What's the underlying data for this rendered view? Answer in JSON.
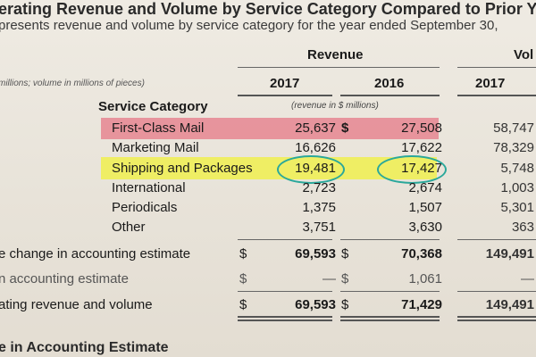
{
  "header": {
    "title": "erating Revenue and Volume by Service Category Compared to Prior Year",
    "subtitle": "presents revenue and volume by service category for the year ended September 30,"
  },
  "columns": {
    "revenue_header": "Revenue",
    "volume_header": "Vol",
    "year_2017": "2017",
    "year_2016": "2016",
    "volume_year_2017": "2017",
    "units_note": "millions; volume in millions of pieces)",
    "revenue_units_note": "(revenue in $ millions)",
    "service_category_label": "Service Category",
    "currency_symbol": "$"
  },
  "rows": [
    {
      "category": "First-Class Mail",
      "rev_2017": "25,637",
      "rev_2016": "27,508",
      "vol_2017": "58,747"
    },
    {
      "category": "Marketing Mail",
      "rev_2017": "16,626",
      "rev_2016": "17,622",
      "vol_2017": "78,329"
    },
    {
      "category": "Shipping and Packages",
      "rev_2017": "19,481",
      "rev_2016": "17,427",
      "vol_2017": "5,748"
    },
    {
      "category": "International",
      "rev_2017": "2,723",
      "rev_2016": "2,674",
      "vol_2017": "1,003"
    },
    {
      "category": "Periodicals",
      "rev_2017": "1,375",
      "rev_2016": "1,507",
      "vol_2017": "5,301"
    },
    {
      "category": "Other",
      "rev_2017": "3,751",
      "rev_2016": "3,630",
      "vol_2017": "363"
    }
  ],
  "summary": [
    {
      "label": "e change in accounting estimate",
      "rev_2017": "69,593",
      "rev_2016": "70,368",
      "vol_2017": "149,491"
    },
    {
      "label": "n accounting estimate",
      "rev_2017": "—",
      "rev_2016": "1,061",
      "vol_2017": "—"
    },
    {
      "label": "ating revenue and volume",
      "rev_2017": "69,593",
      "rev_2016": "71,429",
      "vol_2017": "149,491"
    }
  ],
  "footer": {
    "section_title": "e in Accounting Estimate"
  },
  "highlights": {
    "pink": "#e67887",
    "yellow": "#f0f046",
    "circle": "#2aa89a"
  }
}
